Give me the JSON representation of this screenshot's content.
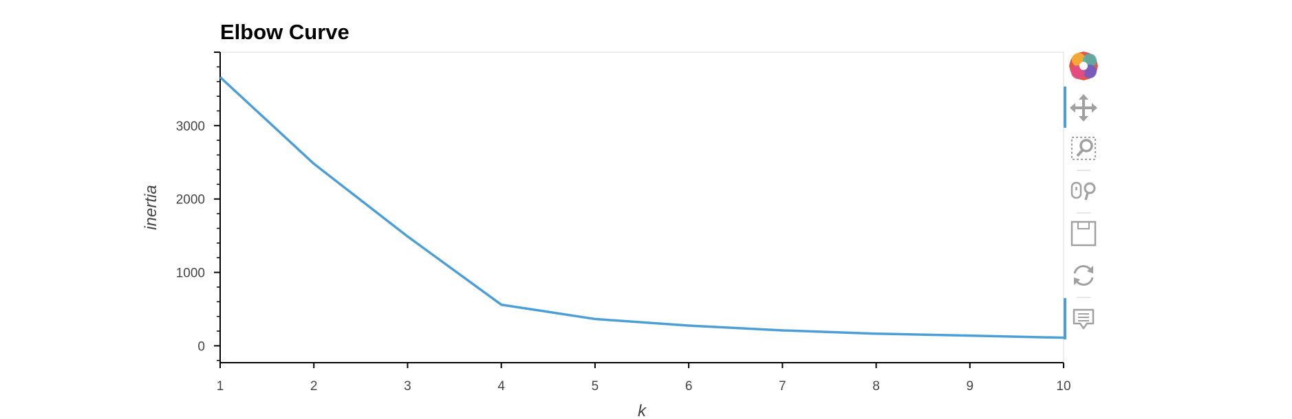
{
  "chart_data": {
    "type": "line",
    "title": "Elbow Curve",
    "xlabel": "k",
    "ylabel": "inertia",
    "x": [
      1,
      2,
      3,
      4,
      5,
      6,
      7,
      8,
      9,
      10
    ],
    "series": [
      {
        "values": [
          3660,
          2480,
          1490,
          560,
          365,
          275,
          210,
          165,
          138,
          110
        ],
        "color": "#4c9fd6"
      }
    ],
    "xlim": [
      1,
      10
    ],
    "ylim": [
      -230,
      4000
    ],
    "xticks": [
      1,
      2,
      3,
      4,
      5,
      6,
      7,
      8,
      9,
      10
    ],
    "yticks": [
      0,
      1000,
      2000,
      3000
    ],
    "grid": false,
    "legend": "none"
  },
  "toolbar": {
    "tools": [
      {
        "name": "bokeh-logo-icon",
        "interactable": false,
        "active": false
      },
      {
        "name": "pan-tool-icon",
        "interactable": true,
        "active": true
      },
      {
        "name": "box-zoom-tool-icon",
        "interactable": true,
        "active": false
      },
      {
        "name": "wheel-zoom-tool-icon",
        "interactable": true,
        "active": false
      },
      {
        "name": "save-tool-icon",
        "interactable": true,
        "active": false
      },
      {
        "name": "reset-tool-icon",
        "interactable": true,
        "active": false
      },
      {
        "name": "hover-tool-icon",
        "interactable": true,
        "active": true
      }
    ],
    "active_color": "#4c9fd6",
    "icon_color": "#a0a0a0"
  }
}
